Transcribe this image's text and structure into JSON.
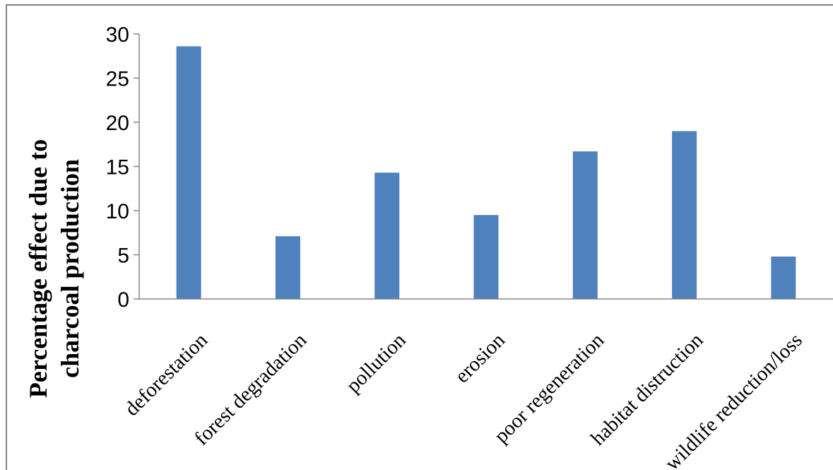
{
  "chart_data": {
    "type": "bar",
    "ylabel_lines": [
      "Percentage effect  due to",
      "charcoal  production"
    ],
    "xlabel": "",
    "ylim": [
      0,
      30
    ],
    "yticks": [
      0,
      5,
      10,
      15,
      20,
      25,
      30
    ],
    "categories": [
      "deforestation",
      "forest degradation",
      "pollution",
      "erosion",
      "poor regeneration",
      "habitat distruction",
      "wildlife reduction/loss"
    ],
    "values": [
      28.6,
      7.1,
      14.3,
      9.5,
      16.7,
      19.0,
      4.8
    ],
    "colors": {
      "bar": "#4F81BD",
      "axis": "#868686"
    },
    "grid": false,
    "legend": "none"
  }
}
